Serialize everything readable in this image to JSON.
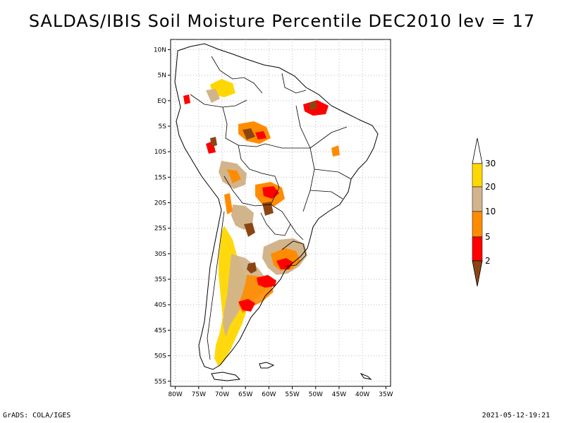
{
  "title": "SALDAS/IBIS Soil Moisture Percentile DEC2010 lev = 17",
  "footer_left": "GrADS: COLA/IGES",
  "footer_right": "2021-05-12-19:21",
  "map": {
    "lon_labels": [
      "80W",
      "75W",
      "70W",
      "65W",
      "60W",
      "55W",
      "50W",
      "45W",
      "40W",
      "35W"
    ],
    "lat_labels": [
      "10N",
      "5N",
      "EQ",
      "5S",
      "10S",
      "15S",
      "20S",
      "25S",
      "30S",
      "35S",
      "40S",
      "45S",
      "50S",
      "55S"
    ],
    "lon_range": [
      -81,
      -34
    ],
    "lat_range": [
      -56,
      12
    ]
  },
  "legend": {
    "labels": [
      "2",
      "5",
      "10",
      "20",
      "30"
    ],
    "colors": {
      "below_2": "#8B4513",
      "2_5": "#FF0000",
      "5_10": "#FF8C00",
      "10_20": "#D2B48C",
      "20_30": "#FFD700",
      "above_30": "#FFFFFF"
    }
  },
  "colors": {
    "coast": "#000000",
    "grid": "#bbbbbb"
  }
}
